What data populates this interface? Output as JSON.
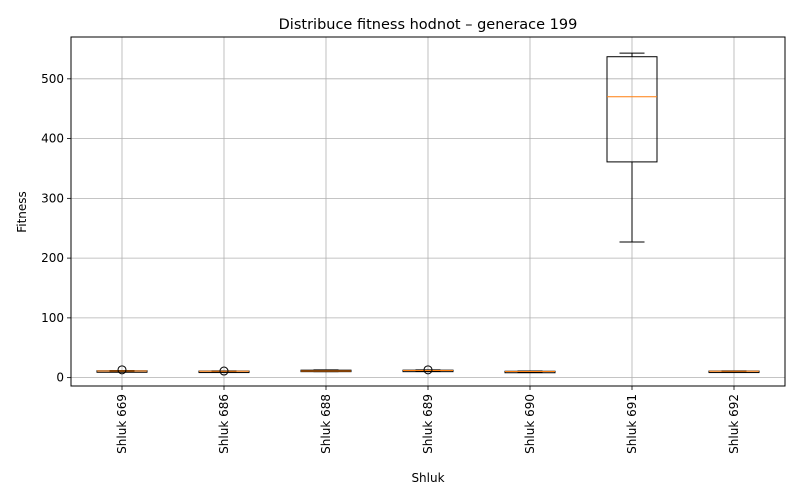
{
  "chart_data": {
    "type": "boxplot",
    "title": "Distribuce fitness hodnot – generace 199",
    "xlabel": "Shluk",
    "ylabel": "Fitness",
    "ylim": [
      -14,
      570
    ],
    "yticks": [
      0,
      100,
      200,
      300,
      400,
      500
    ],
    "grid": true,
    "categories": [
      "Shluk 669",
      "Shluk 686",
      "Shluk 688",
      "Shluk 689",
      "Shluk 690",
      "Shluk 691",
      "Shluk 692"
    ],
    "boxes": [
      {
        "whisker_low": 10,
        "q1": 10.5,
        "median": 11,
        "q3": 11.5,
        "whisker_high": 12,
        "outliers": [
          13
        ]
      },
      {
        "whisker_low": 10,
        "q1": 10.3,
        "median": 10.6,
        "q3": 11,
        "whisker_high": 11.3,
        "outliers": [
          11
        ]
      },
      {
        "whisker_low": 10,
        "q1": 10.5,
        "median": 11,
        "q3": 12.5,
        "whisker_high": 13,
        "outliers": []
      },
      {
        "whisker_low": 11,
        "q1": 11.5,
        "median": 12,
        "q3": 12.5,
        "whisker_high": 13,
        "outliers": [
          13
        ]
      },
      {
        "whisker_low": 9.5,
        "q1": 10,
        "median": 10.3,
        "q3": 10.7,
        "whisker_high": 11,
        "outliers": []
      },
      {
        "whisker_low": 227,
        "q1": 361,
        "median": 470,
        "q3": 537,
        "whisker_high": 543,
        "outliers": []
      },
      {
        "whisker_low": 10,
        "q1": 10.3,
        "median": 10.6,
        "q3": 11,
        "whisker_high": 11.3,
        "outliers": []
      }
    ],
    "colors": {
      "box": "#000000",
      "median": "#ff7f0e",
      "grid": "#b0b0b0"
    }
  }
}
